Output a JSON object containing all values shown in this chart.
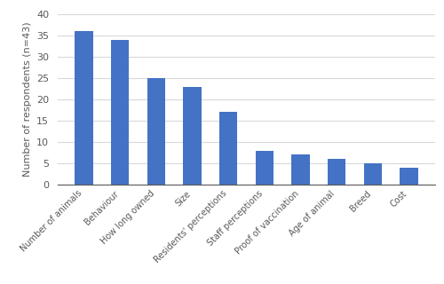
{
  "categories": [
    "Number of animals",
    "Behaviour",
    "How long owned",
    "Size",
    "Residents' perceptions",
    "Staff perceptions",
    "Proof of vaccination",
    "Age of animal",
    "Breed",
    "Cost"
  ],
  "values": [
    36,
    34,
    25,
    23,
    17,
    8,
    7,
    6,
    5,
    4
  ],
  "bar_color": "#4472C4",
  "ylabel": "Number of respondents (n=43)",
  "ylim": [
    0,
    40
  ],
  "yticks": [
    0,
    5,
    10,
    15,
    20,
    25,
    30,
    35,
    40
  ],
  "background_color": "#ffffff",
  "grid_color": "#d9d9d9",
  "tick_label_fontsize": 7.0,
  "ylabel_fontsize": 8.0,
  "ytick_fontsize": 8.0,
  "bar_width": 0.5
}
